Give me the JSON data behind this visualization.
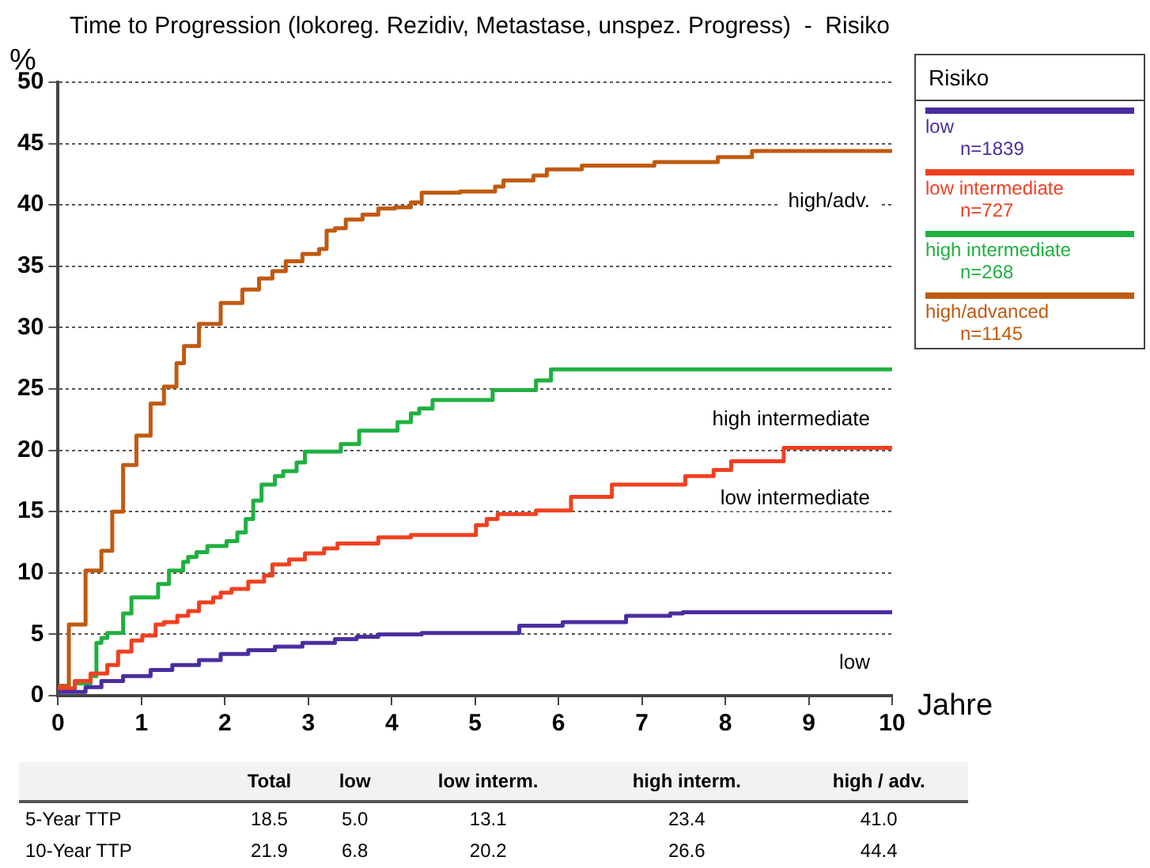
{
  "chart_data": {
    "type": "step",
    "title": "Time to Progression (lokoreg. Rezidiv, Metastase, unspez. Progress)  -  Risiko",
    "xlabel": "Jahre",
    "ylabel": "%",
    "legend_title": "Risiko",
    "xlim": [
      0,
      10
    ],
    "xticks": [
      0,
      1,
      2,
      3,
      4,
      5,
      6,
      7,
      8,
      9,
      10
    ],
    "ylim": [
      0,
      50
    ],
    "yticks": [
      0,
      5,
      10,
      15,
      20,
      25,
      30,
      35,
      40,
      45,
      50
    ],
    "grid": "y",
    "legend": "top right",
    "series": [
      {
        "name": "low\nn=1839",
        "color": "#4a2ea0",
        "x": [
          0,
          0.33,
          0.52,
          0.78,
          1.11,
          1.37,
          1.69,
          1.95,
          2.28,
          2.6,
          2.93,
          3.32,
          3.58,
          3.84,
          4.36,
          5.53,
          6.05,
          6.81,
          7.34,
          7.49,
          8.84,
          10
        ],
        "values": [
          0,
          0.3,
          0.7,
          1.2,
          1.6,
          2.1,
          2.5,
          2.9,
          3.4,
          3.7,
          4,
          4.3,
          4.6,
          4.8,
          5,
          5.1,
          5.7,
          6,
          6.5,
          6.7,
          6.8,
          6.8
        ]
      },
      {
        "name": "low intermediate\nn=727",
        "color": "#f04020",
        "x": [
          0,
          0.2,
          0.39,
          0.59,
          0.72,
          0.88,
          1.01,
          1.17,
          1.27,
          1.43,
          1.56,
          1.69,
          1.86,
          1.95,
          2.08,
          2.28,
          2.47,
          2.57,
          2.77,
          2.96,
          3.19,
          3.35,
          3.84,
          4.23,
          5.01,
          5.14,
          5.27,
          5.73,
          6.15,
          6.64,
          7.52,
          7.86,
          8.07,
          8.7,
          9.46,
          10
        ],
        "values": [
          0,
          0.6,
          1.2,
          1.8,
          2.5,
          3.6,
          4.5,
          4.9,
          5.8,
          6,
          6.5,
          6.9,
          7.6,
          8,
          8.4,
          8.7,
          9.3,
          9.8,
          10.7,
          11.1,
          11.6,
          12,
          12.4,
          12.9,
          13.1,
          13.9,
          14.4,
          14.8,
          15.1,
          16.2,
          17.2,
          17.9,
          18.4,
          19.1,
          20.2,
          20.2
        ]
      },
      {
        "name": "high intermediate\nn=268",
        "color": "#1fb040",
        "x": [
          0,
          0.2,
          0.39,
          0.46,
          0.52,
          0.59,
          0.78,
          0.88,
          1.2,
          1.33,
          1.5,
          1.56,
          1.66,
          1.79,
          2.02,
          2.15,
          2.25,
          2.34,
          2.44,
          2.6,
          2.7,
          2.86,
          2.96,
          3.39,
          3.61,
          4.07,
          4.23,
          4.33,
          4.49,
          5.21,
          5.73,
          5.91,
          6.56,
          10
        ],
        "values": [
          0,
          0.5,
          1,
          1.6,
          4.3,
          4.7,
          5.1,
          6.7,
          8,
          9.1,
          10.2,
          10.9,
          11.3,
          11.7,
          12.2,
          12.6,
          13.3,
          14.4,
          15.9,
          17.2,
          17.9,
          18.3,
          19,
          19.9,
          20.5,
          21.6,
          22.3,
          23,
          23.4,
          24.1,
          24.9,
          25.7,
          26.6,
          26.6
        ]
      },
      {
        "name": "high/advanced\nn=1145",
        "color": "#c05a10",
        "x": [
          0,
          0.13,
          0.33,
          0.52,
          0.65,
          0.78,
          0.94,
          1.11,
          1.27,
          1.42,
          1.51,
          1.69,
          1.95,
          2.21,
          2.41,
          2.57,
          2.73,
          2.93,
          3.13,
          3.22,
          3.32,
          3.45,
          3.65,
          3.84,
          4.04,
          4.23,
          4.36,
          4.82,
          5.24,
          5.34,
          5.7,
          5.86,
          6.28,
          7.15,
          7.91,
          8.32,
          8.99,
          10
        ],
        "values": [
          0,
          0.8,
          5.8,
          10.2,
          11.8,
          15,
          18.8,
          21.2,
          23.8,
          25.2,
          27.1,
          28.5,
          30.3,
          32,
          33.1,
          34,
          34.6,
          35.4,
          36,
          36.4,
          37.9,
          38.1,
          38.8,
          39.2,
          39.7,
          39.8,
          40.2,
          41,
          41.1,
          41.5,
          42,
          42.4,
          42.9,
          43.2,
          43.5,
          43.9,
          44.4,
          44.4
        ]
      }
    ],
    "annotations": [
      "high/adv.",
      "high intermediate",
      "low intermediate",
      "low",
      "Total",
      "low",
      "low interm.",
      "high interm.",
      "high / adv.",
      "5-Year TTP",
      "18.5",
      "5.0",
      "13.1",
      "23.4",
      "41.0",
      "10-Year TTP",
      "21.9",
      "6.8",
      "20.2",
      "26.6",
      "44.4"
    ]
  }
}
